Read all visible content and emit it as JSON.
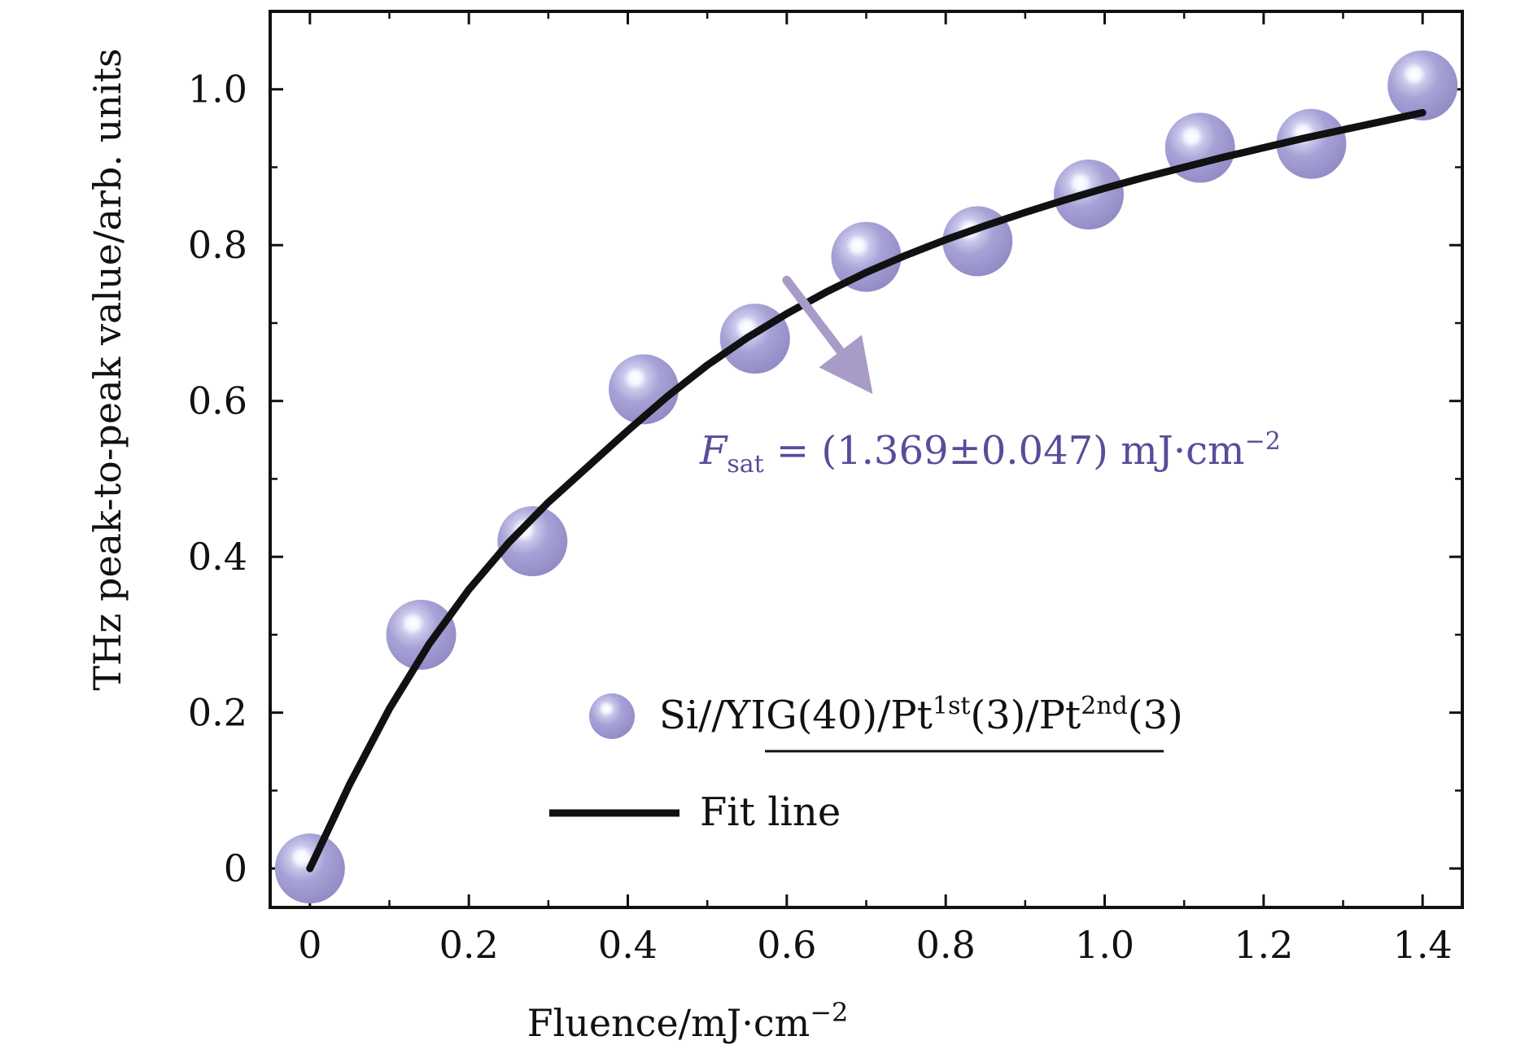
{
  "chart_data": {
    "type": "scatter",
    "title": "",
    "xlabel": "Fluence/mJ·cm",
    "xlabel_exponent": "−2",
    "ylabel": "THz peak-to-peak value/arb. units",
    "xlim": [
      -0.05,
      1.45
    ],
    "ylim": [
      -0.05,
      1.1
    ],
    "x_ticks": [
      0,
      0.2,
      0.4,
      0.6,
      0.8,
      1.0,
      1.2,
      1.4
    ],
    "x_tick_labels": [
      "0",
      "0.2",
      "0.4",
      "0.6",
      "0.8",
      "1.0",
      "1.2",
      "1.4"
    ],
    "y_ticks": [
      0,
      0.2,
      0.4,
      0.6,
      0.8,
      1.0
    ],
    "y_tick_labels": [
      "0",
      "0.2",
      "0.4",
      "0.6",
      "0.8",
      "1.0"
    ],
    "grid": false,
    "legend_position": "bottom-right",
    "series": [
      {
        "name": "Si//YIG(40)/Pt1st(3)/Pt2nd(3)",
        "kind": "scatter",
        "color": "#9f9bc9",
        "points": [
          {
            "x": 0.0,
            "y": 0.0
          },
          {
            "x": 0.14,
            "y": 0.3
          },
          {
            "x": 0.28,
            "y": 0.42
          },
          {
            "x": 0.42,
            "y": 0.615
          },
          {
            "x": 0.56,
            "y": 0.68
          },
          {
            "x": 0.7,
            "y": 0.785
          },
          {
            "x": 0.84,
            "y": 0.805
          },
          {
            "x": 0.98,
            "y": 0.865
          },
          {
            "x": 1.12,
            "y": 0.925
          },
          {
            "x": 1.26,
            "y": 0.93
          },
          {
            "x": 1.4,
            "y": 1.005
          }
        ]
      },
      {
        "name": "Fit line",
        "kind": "line",
        "color": "#111111",
        "points": [
          {
            "x": 0.0,
            "y": 0.0
          },
          {
            "x": 0.05,
            "y": 0.108
          },
          {
            "x": 0.1,
            "y": 0.205
          },
          {
            "x": 0.15,
            "y": 0.288
          },
          {
            "x": 0.2,
            "y": 0.358
          },
          {
            "x": 0.25,
            "y": 0.418
          },
          {
            "x": 0.3,
            "y": 0.47
          },
          {
            "x": 0.35,
            "y": 0.516
          },
          {
            "x": 0.4,
            "y": 0.562
          },
          {
            "x": 0.45,
            "y": 0.606
          },
          {
            "x": 0.5,
            "y": 0.646
          },
          {
            "x": 0.55,
            "y": 0.681
          },
          {
            "x": 0.6,
            "y": 0.712
          },
          {
            "x": 0.65,
            "y": 0.74
          },
          {
            "x": 0.7,
            "y": 0.765
          },
          {
            "x": 0.75,
            "y": 0.787
          },
          {
            "x": 0.8,
            "y": 0.807
          },
          {
            "x": 0.85,
            "y": 0.825
          },
          {
            "x": 0.9,
            "y": 0.842
          },
          {
            "x": 0.95,
            "y": 0.858
          },
          {
            "x": 1.0,
            "y": 0.873
          },
          {
            "x": 1.05,
            "y": 0.887
          },
          {
            "x": 1.1,
            "y": 0.9
          },
          {
            "x": 1.15,
            "y": 0.913
          },
          {
            "x": 1.2,
            "y": 0.925
          },
          {
            "x": 1.25,
            "y": 0.937
          },
          {
            "x": 1.3,
            "y": 0.948
          },
          {
            "x": 1.35,
            "y": 0.959
          },
          {
            "x": 1.4,
            "y": 0.97
          }
        ]
      }
    ],
    "annotation": {
      "text_symbol": "F",
      "text_subscript": "sat",
      "text_rest": " = (1.369±0.047)  mJ·cm",
      "text_exponent": "−2",
      "color": "#5b4b99",
      "arrow_color": "#a99bc7",
      "arrow_from": {
        "x": 0.6,
        "y": 0.755
      },
      "arrow_to": {
        "x": 0.7,
        "y": 0.62
      }
    },
    "legend_labels": {
      "scatter_base": "Si//YIG(40)/Pt",
      "scatter_sup1": "1st",
      "scatter_mid": "(3)/Pt",
      "scatter_sup2": "2nd",
      "scatter_end": "(3)",
      "line": "Fit line"
    }
  }
}
